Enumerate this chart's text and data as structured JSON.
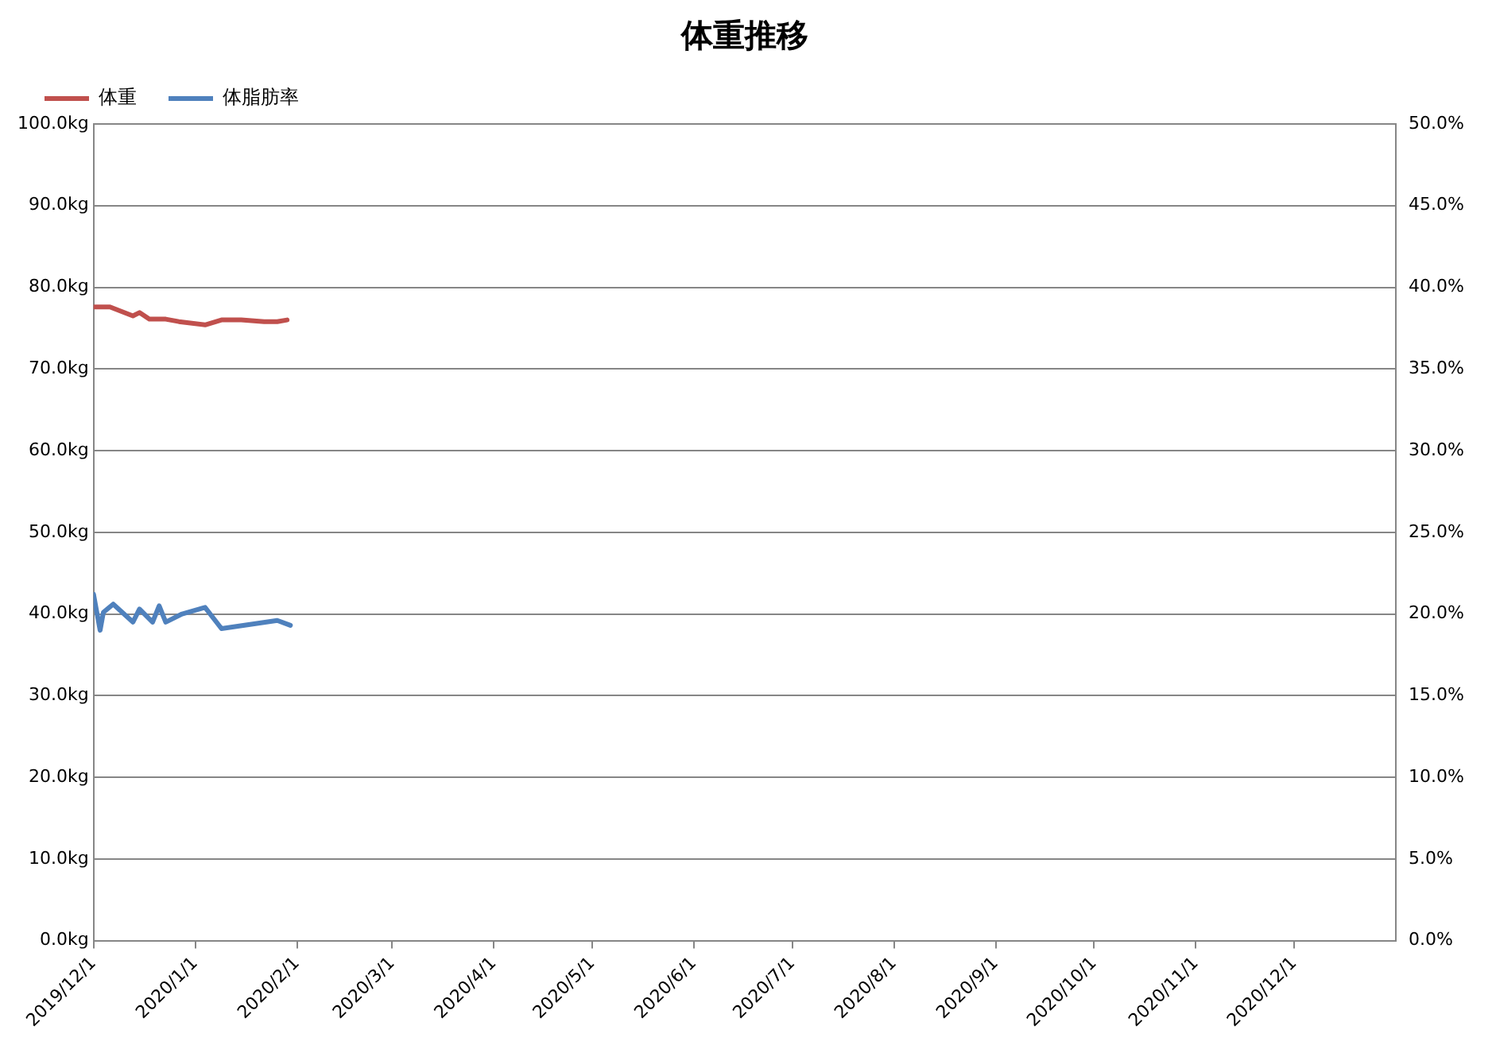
{
  "chart_data": {
    "type": "line",
    "title": "体重推移",
    "legend": "top left",
    "grid": "y",
    "marker": "none",
    "line_style": "solid",
    "xlim": [
      "2019-12-01",
      "2021-01-01"
    ],
    "xticks": [
      {
        "value": "2019-12-01",
        "label": "2019/12/1"
      },
      {
        "value": "2020-01-01",
        "label": "2020/1/1"
      },
      {
        "value": "2020-02-01",
        "label": "2020/2/1"
      },
      {
        "value": "2020-03-01",
        "label": "2020/3/1"
      },
      {
        "value": "2020-04-01",
        "label": "2020/4/1"
      },
      {
        "value": "2020-05-01",
        "label": "2020/5/1"
      },
      {
        "value": "2020-06-01",
        "label": "2020/6/1"
      },
      {
        "value": "2020-07-01",
        "label": "2020/7/1"
      },
      {
        "value": "2020-08-01",
        "label": "2020/8/1"
      },
      {
        "value": "2020-09-01",
        "label": "2020/9/1"
      },
      {
        "value": "2020-10-01",
        "label": "2020/10/1"
      },
      {
        "value": "2020-11-01",
        "label": "2020/11/1"
      },
      {
        "value": "2020-12-01",
        "label": "2020/12/1"
      }
    ],
    "ylim": [
      0,
      100
    ],
    "yticks": [
      {
        "value": 0,
        "label": "0.0kg"
      },
      {
        "value": 10,
        "label": "10.0kg"
      },
      {
        "value": 20,
        "label": "20.0kg"
      },
      {
        "value": 30,
        "label": "30.0kg"
      },
      {
        "value": 40,
        "label": "40.0kg"
      },
      {
        "value": 50,
        "label": "50.0kg"
      },
      {
        "value": 60,
        "label": "60.0kg"
      },
      {
        "value": 70,
        "label": "70.0kg"
      },
      {
        "value": 80,
        "label": "80.0kg"
      },
      {
        "value": 90,
        "label": "90.0kg"
      },
      {
        "value": 100,
        "label": "100.0kg"
      }
    ],
    "y2lim": [
      0,
      50
    ],
    "y2ticks": [
      {
        "value": 0,
        "label": "0.0%"
      },
      {
        "value": 5,
        "label": "5.0%"
      },
      {
        "value": 10,
        "label": "10.0%"
      },
      {
        "value": 15,
        "label": "15.0%"
      },
      {
        "value": 20,
        "label": "20.0%"
      },
      {
        "value": 25,
        "label": "25.0%"
      },
      {
        "value": 30,
        "label": "30.0%"
      },
      {
        "value": 35,
        "label": "35.0%"
      },
      {
        "value": 40,
        "label": "40.0%"
      },
      {
        "value": 45,
        "label": "45.0%"
      },
      {
        "value": 50,
        "label": "50.0%"
      }
    ],
    "series": [
      {
        "name": "体重",
        "color": "#c0504d",
        "x": [
          "2019-12-01",
          "2019-12-06",
          "2019-12-13",
          "2019-12-15",
          "2019-12-18",
          "2019-12-23",
          "2019-12-27",
          "2020-01-04",
          "2020-01-09",
          "2020-01-15",
          "2020-01-22",
          "2020-01-26",
          "2020-01-29"
        ],
        "values": [
          77.6,
          77.6,
          76.5,
          76.9,
          76.1,
          76.1,
          75.8,
          75.4,
          76.0,
          76.0,
          75.8,
          75.8,
          76.0
        ]
      },
      {
        "name": "体脂肪率",
        "color": "#4f81bd",
        "axis": "y2",
        "x": [
          "2019-12-01",
          "2019-12-03",
          "2019-12-04",
          "2019-12-07",
          "2019-12-13",
          "2019-12-15",
          "2019-12-19",
          "2019-12-21",
          "2019-12-23",
          "2019-12-28",
          "2020-01-04",
          "2020-01-09",
          "2020-01-26",
          "2020-01-30"
        ],
        "values": [
          21.2,
          19.0,
          20.1,
          20.6,
          19.5,
          20.3,
          19.5,
          20.5,
          19.5,
          20.0,
          20.4,
          19.1,
          19.6,
          19.3
        ]
      }
    ]
  }
}
